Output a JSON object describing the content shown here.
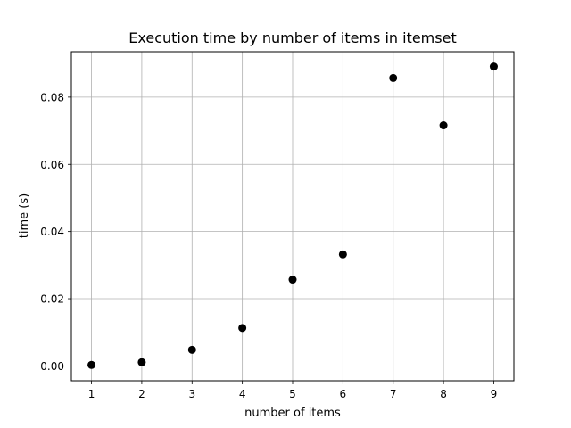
{
  "chart_data": {
    "type": "scatter",
    "title": "Execution time by number of items in itemset",
    "xlabel": "number of items",
    "ylabel": "time (s)",
    "x": [
      1,
      2,
      3,
      4,
      5,
      6,
      7,
      8,
      9
    ],
    "y": [
      0.0003,
      0.0011,
      0.0048,
      0.0113,
      0.0257,
      0.0332,
      0.0857,
      0.0716,
      0.0891
    ],
    "xlim": [
      0.6,
      9.4
    ],
    "ylim": [
      -0.0044,
      0.0935
    ],
    "xticks": [
      1,
      2,
      3,
      4,
      5,
      6,
      7,
      8,
      9
    ],
    "xtick_labels": [
      "1",
      "2",
      "3",
      "4",
      "5",
      "6",
      "7",
      "8",
      "9"
    ],
    "yticks": [
      0.0,
      0.02,
      0.04,
      0.06,
      0.08
    ],
    "ytick_labels": [
      "0.00",
      "0.02",
      "0.04",
      "0.06",
      "0.08"
    ],
    "grid": true,
    "colors": {
      "marker": "#000000",
      "grid": "#b0b0b0",
      "axes": "#000000",
      "background": "#ffffff"
    }
  }
}
